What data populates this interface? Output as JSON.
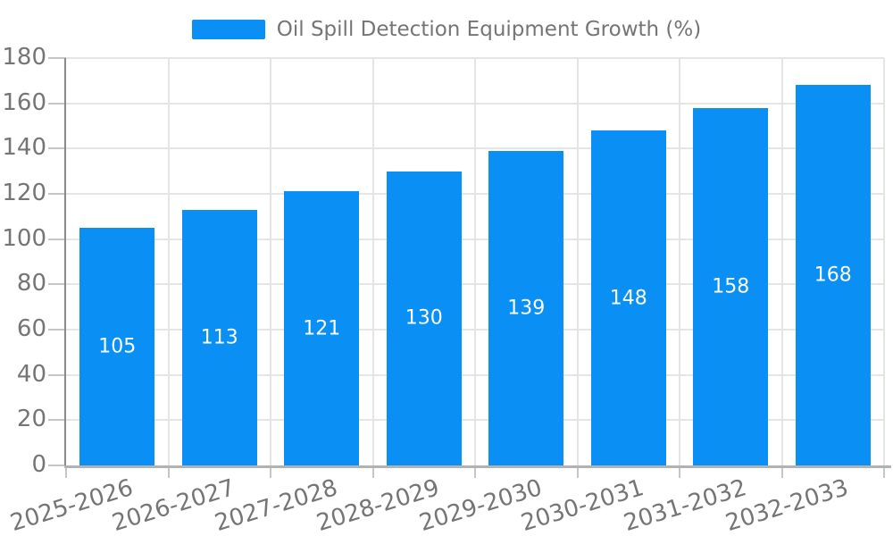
{
  "legend": {
    "label": "Oil Spill Detection Equipment Growth (%)"
  },
  "colors": {
    "bar": "#0a8ff4",
    "bar_label_text": "#ffffff",
    "axis_text": "#757575",
    "legend_text": "#757575",
    "grid_line": "#e5e5e5",
    "y_axis_line": "#8a8a8a",
    "x_axis_line": "#b2b2b2",
    "tick": "#c6c6c6",
    "background": "#ffffff"
  },
  "chart_data": {
    "type": "bar",
    "title": "",
    "xlabel": "",
    "ylabel": "",
    "legend": [
      "Oil Spill Detection Equipment Growth (%)"
    ],
    "legend_position": "top",
    "categories": [
      "2025-2026",
      "2026-2027",
      "2027-2028",
      "2028-2029",
      "2029-2030",
      "2030-2031",
      "2031-2032",
      "2032-2033"
    ],
    "values": [
      105,
      113,
      121,
      130,
      139,
      148,
      158,
      168
    ],
    "ylim": [
      0,
      180
    ],
    "ytick_step": 20,
    "yticks": [
      0,
      20,
      40,
      60,
      80,
      100,
      120,
      140,
      160,
      180
    ],
    "grid": true,
    "value_labels": "inside-center",
    "x_label_rotation_deg": -17
  }
}
